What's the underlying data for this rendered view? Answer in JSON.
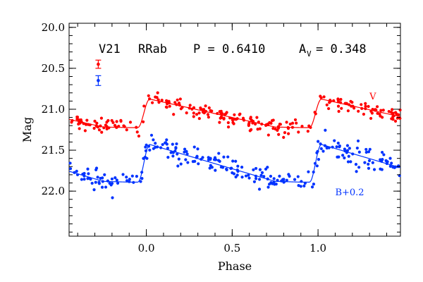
{
  "chart_data": {
    "type": "scatter",
    "xlabel": "Phase",
    "ylabel": "Mag",
    "xlim": [
      -0.45,
      1.48
    ],
    "ylim": [
      22.55,
      19.95
    ],
    "y_inverted": true,
    "x_ticks": [
      {
        "value": 0.0,
        "label": "0.0"
      },
      {
        "value": 0.5,
        "label": "0.5"
      },
      {
        "value": 1.0,
        "label": "1.0"
      }
    ],
    "y_ticks": [
      {
        "value": 20.0,
        "label": "20.0"
      },
      {
        "value": 20.5,
        "label": "20.5"
      },
      {
        "value": 21.0,
        "label": "21.0"
      },
      {
        "value": 21.5,
        "label": "21.5"
      },
      {
        "value": 22.0,
        "label": "22.0"
      }
    ],
    "header": {
      "star": "V21",
      "type": "RRab",
      "period": "P = 0.6410",
      "amplitude_symbol": "A",
      "amplitude_sub": "V",
      "amplitude_value": "= 0.348"
    },
    "series": [
      {
        "name": "V",
        "color": "#ff0000",
        "mean_mag": 21.05,
        "amplitude": 0.348,
        "scatter": 0.045,
        "error_bar": {
          "x": -0.28,
          "y": 20.45,
          "err": 0.05
        },
        "label_pos": {
          "x": 1.3,
          "y": 20.88
        }
      },
      {
        "name": "B+0.2",
        "color": "#0033ff",
        "mean_mag": 21.66,
        "amplitude": 0.46,
        "scatter": 0.065,
        "error_bar": {
          "x": -0.28,
          "y": 20.65,
          "err": 0.06
        },
        "label_pos": {
          "x": 1.1,
          "y": 22.05
        }
      }
    ],
    "grid": false,
    "legend": "none"
  }
}
